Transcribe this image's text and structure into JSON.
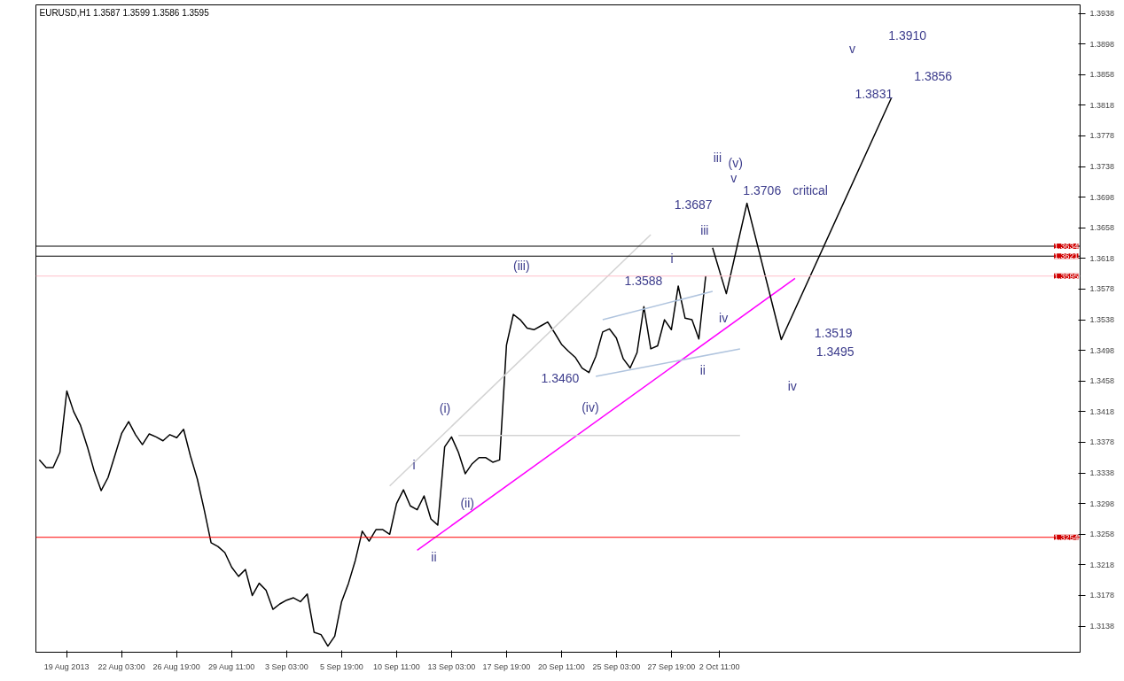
{
  "chart_data": {
    "type": "line",
    "title": "EURUSD,H1 1.3587 1.3599 1.3586 1.3595",
    "categories": [
      null,
      null,
      null,
      null,
      "19 Aug 2013",
      null,
      null,
      null,
      null,
      null,
      null,
      null,
      "22 Aug 03:00",
      null,
      null,
      null,
      null,
      null,
      null,
      null,
      "26 Aug 19:00",
      null,
      null,
      null,
      null,
      null,
      null,
      null,
      "29 Aug 11:00",
      null,
      null,
      null,
      null,
      null,
      null,
      null,
      "3 Sep 03:00",
      null,
      null,
      null,
      null,
      null,
      null,
      null,
      "5 Sep 19:00",
      null,
      null,
      null,
      null,
      null,
      null,
      null,
      "10 Sep 11:00",
      null,
      null,
      null,
      null,
      null,
      null,
      null,
      "13 Sep 03:00",
      null,
      null,
      null,
      null,
      null,
      null,
      null,
      "17 Sep 19:00",
      null,
      null,
      null,
      null,
      null,
      null,
      null,
      "20 Sep 11:00",
      null,
      null,
      null,
      null,
      null,
      null,
      null,
      "25 Sep 03:00",
      null,
      null,
      null,
      null,
      null,
      null,
      null,
      "27 Sep 19:00",
      null,
      null,
      null,
      null,
      null,
      null,
      "2 Oct 11:00",
      null,
      null,
      null,
      null,
      null,
      null,
      null,
      null,
      null,
      null,
      null,
      null,
      null,
      null,
      null,
      null,
      null,
      null,
      null,
      null,
      null,
      null,
      null,
      null,
      null,
      null,
      null,
      null,
      null,
      null,
      null,
      null,
      null,
      null,
      null,
      null,
      null,
      null,
      null,
      null,
      null,
      null,
      null,
      null,
      null,
      null,
      null,
      null,
      null,
      null,
      null,
      null
    ],
    "ylim": [
      1.3104,
      1.3949
    ],
    "yticks": [
      1.3138,
      1.3178,
      1.3218,
      1.3258,
      1.3298,
      1.3338,
      1.3378,
      1.3418,
      1.3458,
      1.3498,
      1.3538,
      1.3578,
      1.3618,
      1.3658,
      1.3698,
      1.3738,
      1.3778,
      1.3818,
      1.3858,
      1.3898,
      1.3938
    ],
    "grid": false,
    "marker": "none",
    "line_style": "solid",
    "series": [
      {
        "color": "#000000",
        "values": [
          1.3355,
          1.3345,
          1.3345,
          1.3365,
          1.3445,
          1.3418,
          1.34,
          1.3372,
          1.334,
          1.3315,
          1.3332,
          1.3361,
          1.339,
          1.3405,
          1.3388,
          1.3375,
          1.3389,
          1.3385,
          1.338,
          1.3388,
          1.3384,
          1.3395,
          1.336,
          1.333,
          1.329,
          1.3247,
          1.3242,
          1.3234,
          1.3215,
          1.3203,
          1.3212,
          1.3178,
          1.3194,
          1.3185,
          1.316,
          1.3167,
          1.3172,
          1.3175,
          1.317,
          1.318,
          1.313,
          1.3127,
          1.3112,
          1.3125,
          1.317,
          1.3194,
          1.3224,
          1.3262,
          1.3249,
          1.3264,
          1.3264,
          1.3258,
          1.3298,
          1.3316,
          1.3295,
          1.329,
          1.3308,
          1.3278,
          1.327,
          1.3372,
          1.3385,
          1.3365,
          1.3337,
          1.335,
          1.3358,
          1.3358,
          1.3352,
          1.3355,
          1.3505,
          1.3545,
          1.3538,
          1.3527,
          1.3525,
          1.353,
          1.3535,
          1.3521,
          1.3506,
          1.3497,
          1.3489,
          1.3475,
          1.3469,
          1.349,
          1.3522,
          1.3526,
          1.3514,
          1.3487,
          1.3475,
          1.3495,
          1.3555,
          1.35,
          1.3504,
          1.3538,
          1.3525,
          1.3582,
          1.354,
          1.3538,
          1.3513,
          1.3595,
          null,
          null,
          null,
          null,
          null,
          null,
          null,
          null,
          null,
          null,
          null,
          null,
          null,
          null,
          null,
          null,
          null,
          null,
          null,
          null,
          null,
          null,
          null,
          null,
          null,
          null,
          null,
          null,
          null,
          null,
          null,
          null,
          null,
          null,
          null,
          null,
          null,
          null,
          null,
          null,
          null,
          null,
          null,
          null,
          null,
          null,
          null,
          null,
          null,
          null,
          null,
          null,
          null,
          null
        ]
      },
      {
        "color": "#ff00ff",
        "values": [
          null,
          null,
          null,
          null,
          null,
          null,
          null,
          null,
          null,
          null,
          null,
          null,
          null,
          null,
          null,
          null,
          null,
          null,
          null,
          null,
          null,
          null,
          null,
          null,
          null,
          null,
          null,
          null,
          null,
          null,
          null,
          null,
          null,
          null,
          null,
          null,
          null,
          null,
          null,
          null,
          null,
          null,
          null,
          null,
          null,
          null,
          null,
          null,
          null,
          null,
          null,
          null,
          null,
          null,
          null,
          1.3237,
          null,
          null,
          null,
          null,
          null,
          null,
          null,
          null,
          null,
          null,
          null,
          null,
          null,
          null,
          null,
          null,
          null,
          null,
          null,
          null,
          null,
          null,
          null,
          null,
          null,
          null,
          null,
          null,
          null,
          null,
          null,
          null,
          null,
          null,
          null,
          null,
          null,
          null,
          null,
          null,
          null,
          null,
          null,
          null,
          null,
          null,
          null,
          null,
          null,
          null,
          null,
          null,
          null,
          null,
          1.3592,
          null,
          null,
          null,
          null,
          null,
          null,
          null,
          null,
          null,
          null,
          null,
          null,
          null,
          null,
          null,
          null,
          null,
          null,
          null,
          null,
          null,
          null,
          null,
          null,
          null,
          null,
          null,
          null,
          null,
          null,
          null,
          null,
          null,
          null,
          null,
          null,
          null,
          null,
          null,
          null,
          null
        ]
      },
      {
        "color": "#d3d3d3",
        "values": [
          null,
          null,
          null,
          null,
          null,
          null,
          null,
          null,
          null,
          null,
          null,
          null,
          null,
          null,
          null,
          null,
          null,
          null,
          null,
          null,
          null,
          null,
          null,
          null,
          null,
          null,
          null,
          null,
          null,
          null,
          null,
          null,
          null,
          null,
          null,
          null,
          null,
          null,
          null,
          null,
          null,
          null,
          null,
          null,
          null,
          null,
          null,
          null,
          null,
          null,
          null,
          1.3321,
          null,
          null,
          null,
          null,
          null,
          null,
          null,
          null,
          null,
          null,
          null,
          null,
          null,
          null,
          null,
          null,
          null,
          null,
          null,
          null,
          null,
          null,
          null,
          null,
          null,
          null,
          null,
          null,
          null,
          null,
          null,
          null,
          null,
          null,
          null,
          null,
          null,
          1.3649,
          null,
          null,
          null,
          null,
          null,
          null,
          null,
          null,
          null,
          null,
          null,
          null,
          null,
          null,
          null,
          null,
          null,
          null,
          null,
          null,
          null,
          null,
          null,
          null,
          null,
          null,
          null,
          null,
          null,
          null,
          null,
          null,
          null,
          null,
          null,
          null,
          null,
          null,
          null,
          null,
          null,
          null,
          null,
          null,
          null,
          null,
          null,
          null,
          null,
          null,
          null,
          null,
          null,
          null,
          null,
          null,
          null,
          null,
          null,
          null,
          null,
          null
        ]
      },
      {
        "color": "#d3d3d3",
        "values": [
          null,
          null,
          null,
          null,
          null,
          null,
          null,
          null,
          null,
          null,
          null,
          null,
          null,
          null,
          null,
          null,
          null,
          null,
          null,
          null,
          null,
          null,
          null,
          null,
          null,
          null,
          null,
          null,
          null,
          null,
          null,
          null,
          null,
          null,
          null,
          null,
          null,
          null,
          null,
          null,
          null,
          null,
          null,
          null,
          null,
          null,
          null,
          null,
          null,
          null,
          null,
          null,
          null,
          null,
          null,
          null,
          null,
          null,
          null,
          null,
          null,
          1.3387,
          null,
          null,
          null,
          null,
          null,
          null,
          null,
          null,
          null,
          null,
          null,
          null,
          null,
          null,
          null,
          null,
          null,
          null,
          null,
          null,
          null,
          null,
          null,
          null,
          null,
          null,
          null,
          null,
          null,
          null,
          null,
          null,
          null,
          null,
          null,
          null,
          null,
          null,
          null,
          null,
          1.3387,
          null,
          null,
          null,
          null,
          null,
          null,
          null,
          null,
          null,
          null,
          null,
          null,
          null,
          null,
          null,
          null,
          null,
          null,
          null,
          null,
          null,
          null,
          null,
          null,
          null,
          null,
          null,
          null,
          null,
          null,
          null,
          null,
          null,
          null,
          null,
          null,
          null,
          null,
          null,
          null,
          null,
          null,
          null,
          null,
          null,
          null,
          null,
          null,
          null
        ]
      },
      {
        "color": "#b0c4de",
        "values": [
          null,
          null,
          null,
          null,
          null,
          null,
          null,
          null,
          null,
          null,
          null,
          null,
          null,
          null,
          null,
          null,
          null,
          null,
          null,
          null,
          null,
          null,
          null,
          null,
          null,
          null,
          null,
          null,
          null,
          null,
          null,
          null,
          null,
          null,
          null,
          null,
          null,
          null,
          null,
          null,
          null,
          null,
          null,
          null,
          null,
          null,
          null,
          null,
          null,
          null,
          null,
          null,
          null,
          null,
          null,
          null,
          null,
          null,
          null,
          null,
          null,
          null,
          null,
          null,
          null,
          null,
          null,
          null,
          null,
          null,
          null,
          null,
          null,
          null,
          null,
          null,
          null,
          null,
          null,
          null,
          null,
          null,
          1.3538,
          null,
          null,
          null,
          null,
          null,
          null,
          null,
          null,
          null,
          null,
          null,
          null,
          null,
          null,
          null,
          1.3575,
          null,
          null,
          null,
          null,
          null,
          null,
          null,
          null,
          null,
          null,
          null,
          null,
          null,
          null,
          null,
          null,
          null,
          null,
          null,
          null,
          null,
          null,
          null,
          null,
          null,
          null,
          null,
          null,
          null,
          null,
          null,
          null,
          null,
          null,
          null,
          null,
          null,
          null,
          null,
          null,
          null,
          null,
          null,
          null,
          null,
          null,
          null,
          null,
          null,
          null,
          null,
          null,
          null
        ]
      },
      {
        "color": "#b0c4de",
        "values": [
          null,
          null,
          null,
          null,
          null,
          null,
          null,
          null,
          null,
          null,
          null,
          null,
          null,
          null,
          null,
          null,
          null,
          null,
          null,
          null,
          null,
          null,
          null,
          null,
          null,
          null,
          null,
          null,
          null,
          null,
          null,
          null,
          null,
          null,
          null,
          null,
          null,
          null,
          null,
          null,
          null,
          null,
          null,
          null,
          null,
          null,
          null,
          null,
          null,
          null,
          null,
          null,
          null,
          null,
          null,
          null,
          null,
          null,
          null,
          null,
          null,
          null,
          null,
          null,
          null,
          null,
          null,
          null,
          null,
          null,
          null,
          null,
          null,
          null,
          null,
          null,
          null,
          null,
          null,
          null,
          null,
          1.3464,
          null,
          null,
          null,
          null,
          null,
          null,
          null,
          null,
          null,
          null,
          null,
          null,
          null,
          null,
          null,
          null,
          null,
          null,
          null,
          null,
          1.35,
          null,
          null,
          null,
          null,
          null,
          null,
          null,
          null,
          null,
          null,
          null,
          null,
          null,
          null,
          null,
          null,
          null,
          null,
          null,
          null,
          null,
          null,
          null,
          null,
          null,
          null,
          null,
          null,
          null,
          null,
          null,
          null,
          null,
          null,
          null,
          null,
          null,
          null,
          null,
          null,
          null,
          null,
          null,
          null,
          null,
          null,
          null,
          null,
          null
        ]
      },
      {
        "color": "#000000",
        "values": [
          null,
          null,
          null,
          null,
          null,
          null,
          null,
          null,
          null,
          null,
          null,
          null,
          null,
          null,
          null,
          null,
          null,
          null,
          null,
          null,
          null,
          null,
          null,
          null,
          null,
          null,
          null,
          null,
          null,
          null,
          null,
          null,
          null,
          null,
          null,
          null,
          null,
          null,
          null,
          null,
          null,
          null,
          null,
          null,
          null,
          null,
          null,
          null,
          null,
          null,
          null,
          null,
          null,
          null,
          null,
          null,
          null,
          null,
          null,
          null,
          null,
          null,
          null,
          null,
          null,
          null,
          null,
          null,
          null,
          null,
          null,
          null,
          null,
          null,
          null,
          null,
          null,
          null,
          null,
          null,
          null,
          null,
          null,
          null,
          null,
          null,
          null,
          null,
          null,
          null,
          null,
          null,
          null,
          null,
          null,
          null,
          null,
          null,
          1.3632,
          null,
          1.3572,
          null,
          null,
          1.369,
          null,
          null,
          null,
          null,
          1.3512,
          null,
          null,
          null,
          null,
          null,
          null,
          null,
          null,
          null,
          null,
          null,
          null,
          null,
          null,
          null,
          1.3827,
          null,
          null,
          null,
          null,
          null,
          null,
          null,
          null,
          null,
          null,
          null,
          null,
          null,
          null,
          null,
          null,
          null,
          null,
          null,
          null,
          null,
          null,
          null,
          null,
          null,
          null,
          null
        ]
      }
    ],
    "ref_lines": [
      {
        "axis": "y",
        "value": 1.3634,
        "label": "1.3634",
        "color": "#000000"
      },
      {
        "axis": "y",
        "value": 1.3621,
        "label": "1.3621",
        "color": "#000000"
      },
      {
        "axis": "y",
        "value": 1.3595,
        "label": "1.3595",
        "color": "#ffc0cb"
      },
      {
        "axis": "y",
        "value": 1.3254,
        "label": "1.3254",
        "color": "#ff0000"
      }
    ],
    "annotations": [
      "(iii)",
      "i",
      "iii",
      "(v)",
      "v",
      "iii",
      "iv",
      "ii",
      "(iv)",
      "(i)",
      "(ii)",
      "i",
      "ii",
      "iv",
      "v",
      "1.3910",
      "1.3856",
      "1.3831",
      "1.3706",
      "critical",
      "1.3687",
      "1.3588",
      "1.3460",
      "1.3519",
      "1.3495"
    ]
  }
}
